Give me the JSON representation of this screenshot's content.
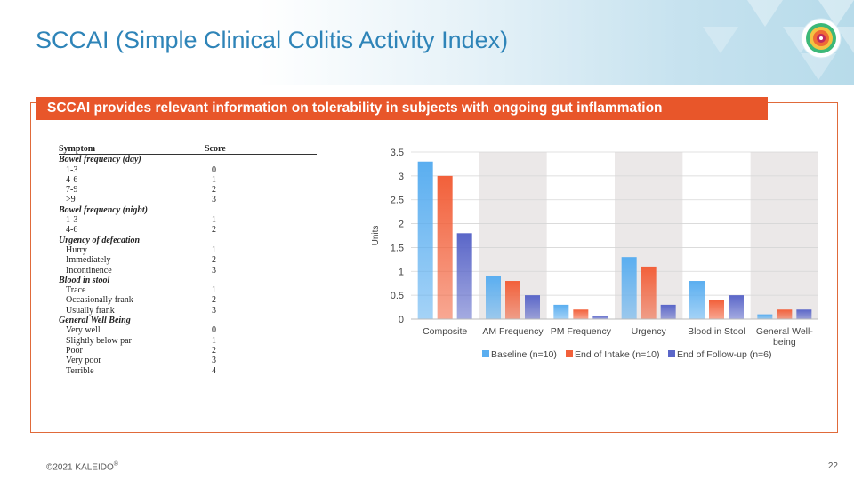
{
  "slide": {
    "title": "SCCAI (Simple Clinical Colitis Activity Index)",
    "banner": "SCCAI provides relevant information on tolerability in subjects with ongoing gut inflammation",
    "footer_text": "©2021 KALEIDO",
    "footer_mark": "®",
    "page_number": "22"
  },
  "symptom_table": {
    "headers": [
      "Symptom",
      "Score"
    ],
    "rows": [
      {
        "kind": "cat",
        "name": "Bowel frequency (day)",
        "score": ""
      },
      {
        "kind": "item",
        "name": "1-3",
        "score": "0"
      },
      {
        "kind": "item",
        "name": "4-6",
        "score": "1"
      },
      {
        "kind": "item",
        "name": "7-9",
        "score": "2"
      },
      {
        "kind": "item",
        "name": ">9",
        "score": "3"
      },
      {
        "kind": "cat",
        "name": "Bowel frequency (night)",
        "score": ""
      },
      {
        "kind": "item",
        "name": "1-3",
        "score": "1"
      },
      {
        "kind": "item",
        "name": "4-6",
        "score": "2"
      },
      {
        "kind": "cat",
        "name": "Urgency of defecation",
        "score": ""
      },
      {
        "kind": "item",
        "name": "Hurry",
        "score": "1"
      },
      {
        "kind": "item",
        "name": "Immediately",
        "score": "2"
      },
      {
        "kind": "item",
        "name": "Incontinence",
        "score": "3"
      },
      {
        "kind": "cat",
        "name": "Blood in stool",
        "score": ""
      },
      {
        "kind": "item",
        "name": "Trace",
        "score": "1"
      },
      {
        "kind": "item",
        "name": "Occasionally frank",
        "score": "2"
      },
      {
        "kind": "item",
        "name": "Usually frank",
        "score": "3"
      },
      {
        "kind": "cat",
        "name": "General Well Being",
        "score": ""
      },
      {
        "kind": "item",
        "name": "Very well",
        "score": "0"
      },
      {
        "kind": "item",
        "name": "Slightly below par",
        "score": "1"
      },
      {
        "kind": "item",
        "name": "Poor",
        "score": "2"
      },
      {
        "kind": "item",
        "name": "Very poor",
        "score": "3"
      },
      {
        "kind": "item",
        "name": "Terrible",
        "score": "4"
      }
    ]
  },
  "chart_data": {
    "type": "bar",
    "title": "",
    "xlabel": "",
    "ylabel": "Units",
    "ylim": [
      0,
      3.5
    ],
    "yticks": [
      "0",
      "0.5",
      "1",
      "1.5",
      "2",
      "2.5",
      "3",
      "3.5"
    ],
    "categories": [
      "Composite",
      "AM Frequency",
      "PM Frequency",
      "Urgency",
      "Blood in Stool",
      "General Well-being"
    ],
    "category_lines": [
      [
        "Composite"
      ],
      [
        "AM Frequency"
      ],
      [
        "PM Frequency"
      ],
      [
        "Urgency"
      ],
      [
        "Blood in Stool"
      ],
      [
        "General Well-",
        "being"
      ]
    ],
    "series": [
      {
        "name": "Baseline (n=10)",
        "values": [
          3.3,
          0.9,
          0.3,
          1.3,
          0.8,
          0.1
        ],
        "color": "#5aaef0"
      },
      {
        "name": "End of Intake (n=10)",
        "values": [
          3.0,
          0.8,
          0.2,
          1.1,
          0.4,
          0.2
        ],
        "color": "#f2603a"
      },
      {
        "name": "End of Follow-up (n=6)",
        "values": [
          1.8,
          0.5,
          0.07,
          0.3,
          0.5,
          0.2
        ],
        "color": "#5a66c8"
      }
    ],
    "legend_position": "bottom",
    "shaded_bands": true,
    "grid": true
  }
}
